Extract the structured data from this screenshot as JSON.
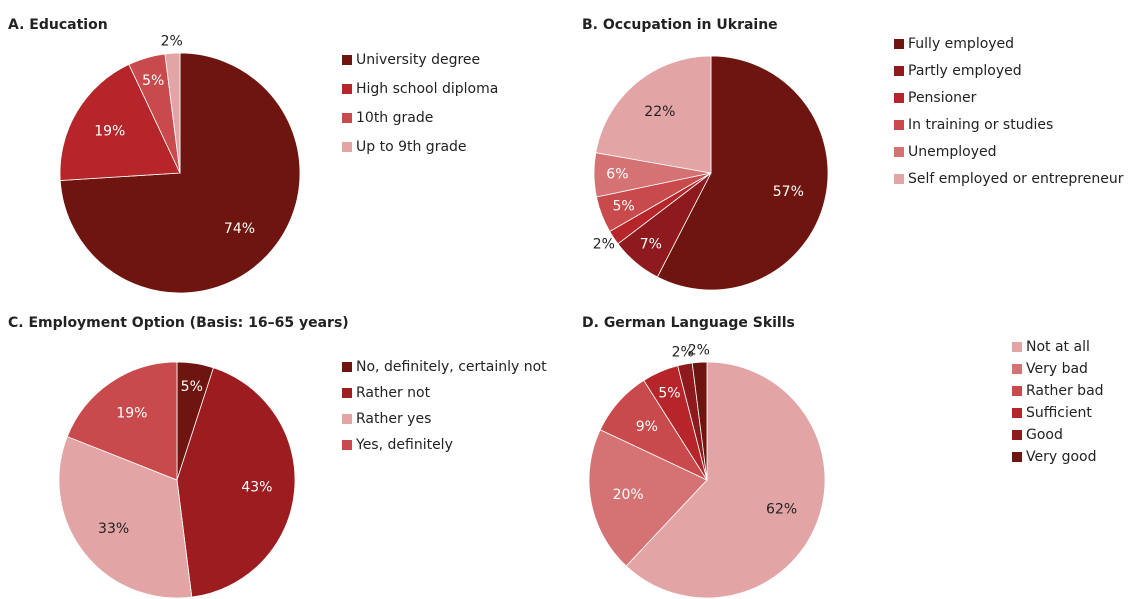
{
  "chart_data": [
    {
      "type": "pie",
      "title": "A. Education",
      "categories": [
        "University degree",
        "High school diploma",
        "10th grade",
        "Up to 9th grade"
      ],
      "values": [
        74,
        19,
        5,
        2
      ],
      "value_labels": [
        "74%",
        "19%",
        "5%",
        "2%"
      ],
      "colors": [
        "#6e1510",
        "#b5252a",
        "#c94a4c",
        "#e3a4a6"
      ]
    },
    {
      "type": "pie",
      "title": "B. Occupation in Ukraine",
      "categories": [
        "Fully employed",
        "Partly employed",
        "Pensioner",
        "In training or studies",
        "Unemployed",
        "Self employed or entrepreneur"
      ],
      "values": [
        57,
        7,
        2,
        5,
        6,
        22
      ],
      "value_labels": [
        "57%",
        "7%",
        "2%",
        "5%",
        "6%",
        "22%"
      ],
      "colors": [
        "#6e1510",
        "#8f1a1d",
        "#b5252a",
        "#c94a4c",
        "#d57273",
        "#e3a4a6"
      ]
    },
    {
      "type": "pie",
      "title": "C. Employment Option (Basis: 16–65 years)",
      "categories": [
        "No, definitely, certainly not",
        "Rather not",
        "Rather yes",
        "Yes, definitely"
      ],
      "values": [
        5,
        43,
        33,
        19
      ],
      "value_labels": [
        "5%",
        "43%",
        "33%",
        "19%"
      ],
      "colors": [
        "#6e1510",
        "#9c1c1f",
        "#e3a4a6",
        "#c94a4c"
      ]
    },
    {
      "type": "pie",
      "title": "D. German Language Skills",
      "categories": [
        "Not at all",
        "Very bad",
        "Rather bad",
        "Sufficient",
        "Good",
        "Very good"
      ],
      "values": [
        62,
        20,
        9,
        5,
        2,
        2
      ],
      "value_labels": [
        "62%",
        "20%",
        "9%",
        "5%",
        "2%",
        "2%"
      ],
      "colors": [
        "#e3a4a6",
        "#d57273",
        "#c94a4c",
        "#b5252a",
        "#8f1a1d",
        "#6e1510"
      ]
    }
  ]
}
